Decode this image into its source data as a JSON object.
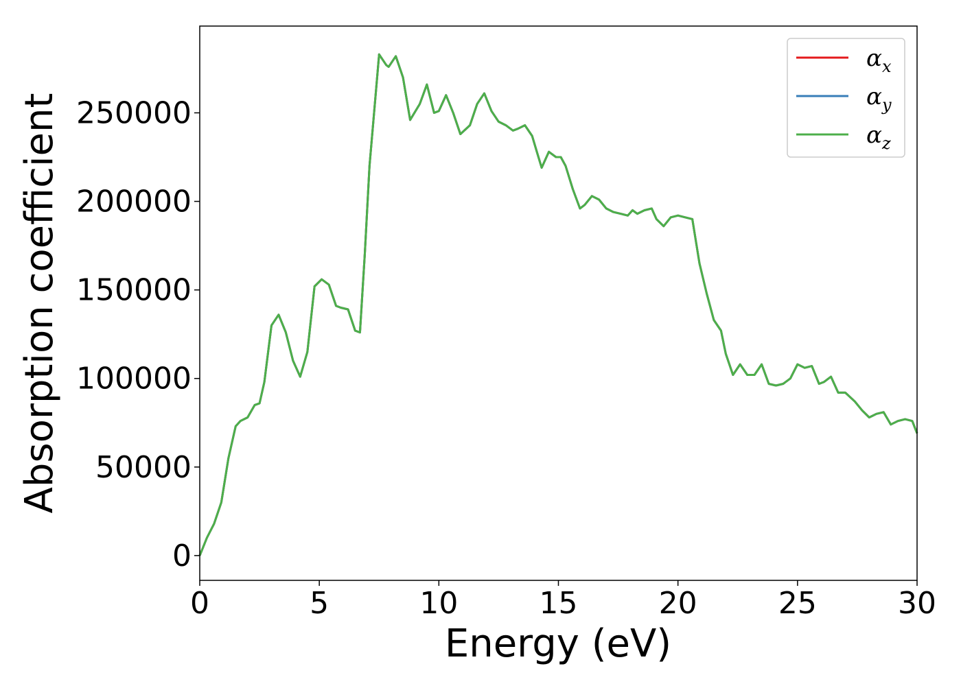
{
  "chart_data": {
    "type": "line",
    "xlabel": "Energy (eV)",
    "ylabel": "Absorption coefficient",
    "xlim": [
      0,
      30
    ],
    "ylim": [
      -14000,
      299000
    ],
    "xticks": [
      "0",
      "5",
      "10",
      "15",
      "20",
      "25",
      "30"
    ],
    "yticks": [
      "0",
      "50000",
      "100000",
      "150000",
      "200000",
      "250000"
    ],
    "grid": false,
    "legend_position": "top-right",
    "legend": [
      {
        "label": "α",
        "sub": "x",
        "color": "#e41a1c"
      },
      {
        "label": "α",
        "sub": "y",
        "color": "#377eb8"
      },
      {
        "label": "α",
        "sub": "z",
        "color": "#4daf4a"
      }
    ],
    "x": [
      0,
      0.3,
      0.6,
      0.9,
      1.2,
      1.5,
      1.7,
      2.0,
      2.3,
      2.5,
      2.7,
      3.0,
      3.3,
      3.6,
      3.9,
      4.2,
      4.5,
      4.8,
      5.1,
      5.4,
      5.7,
      5.9,
      6.2,
      6.5,
      6.7,
      6.9,
      7.1,
      7.5,
      7.8,
      7.9,
      8.2,
      8.5,
      8.8,
      9.2,
      9.5,
      9.8,
      10.0,
      10.3,
      10.6,
      10.9,
      11.3,
      11.6,
      11.9,
      12.2,
      12.5,
      12.8,
      13.1,
      13.3,
      13.6,
      13.9,
      14.1,
      14.3,
      14.6,
      14.9,
      15.1,
      15.3,
      15.6,
      15.9,
      16.1,
      16.4,
      16.7,
      17.0,
      17.3,
      17.6,
      17.9,
      18.1,
      18.3,
      18.6,
      18.9,
      19.1,
      19.4,
      19.7,
      20.0,
      20.3,
      20.6,
      20.9,
      21.2,
      21.5,
      21.8,
      22.0,
      22.3,
      22.6,
      22.9,
      23.2,
      23.5,
      23.8,
      24.1,
      24.4,
      24.7,
      25.0,
      25.3,
      25.6,
      25.9,
      26.1,
      26.4,
      26.7,
      27.0,
      27.4,
      27.7,
      28.0,
      28.3,
      28.6,
      28.9,
      29.2,
      29.5,
      29.8,
      30.0
    ],
    "series": [
      {
        "values": [
          0,
          10000,
          18000,
          30000,
          55000,
          73000,
          76000,
          78000,
          85000,
          86000,
          98000,
          130000,
          136000,
          126000,
          110000,
          101000,
          115000,
          152000,
          156000,
          153000,
          141000,
          140000,
          139000,
          127000,
          126000,
          170000,
          220000,
          283000,
          277000,
          276000,
          282000,
          270000,
          246000,
          255000,
          266000,
          250000,
          251000,
          260000,
          250000,
          238000,
          243000,
          255000,
          261000,
          251000,
          245000,
          243000,
          240000,
          241000,
          243000,
          237000,
          228000,
          219000,
          228000,
          225000,
          225000,
          220000,
          207000,
          196000,
          198000,
          203000,
          201000,
          196000,
          194000,
          193000,
          192000,
          195000,
          193000,
          195000,
          196000,
          190000,
          186000,
          191000,
          192000,
          191000,
          190000,
          165000,
          148000,
          133000,
          127000,
          114000,
          102000,
          108000,
          102000,
          102000,
          108000,
          97000,
          96000,
          97000,
          100000,
          108000,
          106000,
          107000,
          97000,
          98000,
          101000,
          92000,
          92000,
          87000,
          82000,
          78000,
          80000,
          81000,
          74000,
          76000,
          77000,
          76000,
          69000
        ]
      },
      {
        "values": [
          0,
          10000,
          18000,
          30000,
          55000,
          73000,
          76000,
          78000,
          85000,
          86000,
          98000,
          130000,
          136000,
          126000,
          110000,
          101000,
          115000,
          152000,
          156000,
          153000,
          141000,
          140000,
          139000,
          127000,
          126000,
          170000,
          220000,
          283000,
          277000,
          276000,
          282000,
          270000,
          246000,
          255000,
          266000,
          250000,
          251000,
          260000,
          250000,
          238000,
          243000,
          255000,
          261000,
          251000,
          245000,
          243000,
          240000,
          241000,
          243000,
          237000,
          228000,
          219000,
          228000,
          225000,
          225000,
          220000,
          207000,
          196000,
          198000,
          203000,
          201000,
          196000,
          194000,
          193000,
          192000,
          195000,
          193000,
          195000,
          196000,
          190000,
          186000,
          191000,
          192000,
          191000,
          190000,
          165000,
          148000,
          133000,
          127000,
          114000,
          102000,
          108000,
          102000,
          102000,
          108000,
          97000,
          96000,
          97000,
          100000,
          108000,
          106000,
          107000,
          97000,
          98000,
          101000,
          92000,
          92000,
          87000,
          82000,
          78000,
          80000,
          81000,
          74000,
          76000,
          77000,
          76000,
          69000
        ]
      },
      {
        "values": [
          0,
          10000,
          18000,
          30000,
          55000,
          73000,
          76000,
          78000,
          85000,
          86000,
          98000,
          130000,
          136000,
          126000,
          110000,
          101000,
          115000,
          152000,
          156000,
          153000,
          141000,
          140000,
          139000,
          127000,
          126000,
          170000,
          220000,
          283000,
          277000,
          276000,
          282000,
          270000,
          246000,
          255000,
          266000,
          250000,
          251000,
          260000,
          250000,
          238000,
          243000,
          255000,
          261000,
          251000,
          245000,
          243000,
          240000,
          241000,
          243000,
          237000,
          228000,
          219000,
          228000,
          225000,
          225000,
          220000,
          207000,
          196000,
          198000,
          203000,
          201000,
          196000,
          194000,
          193000,
          192000,
          195000,
          193000,
          195000,
          196000,
          190000,
          186000,
          191000,
          192000,
          191000,
          190000,
          165000,
          148000,
          133000,
          127000,
          114000,
          102000,
          108000,
          102000,
          102000,
          108000,
          97000,
          96000,
          97000,
          100000,
          108000,
          106000,
          107000,
          97000,
          98000,
          101000,
          92000,
          92000,
          87000,
          82000,
          78000,
          80000,
          81000,
          74000,
          76000,
          77000,
          76000,
          69000
        ]
      }
    ]
  }
}
